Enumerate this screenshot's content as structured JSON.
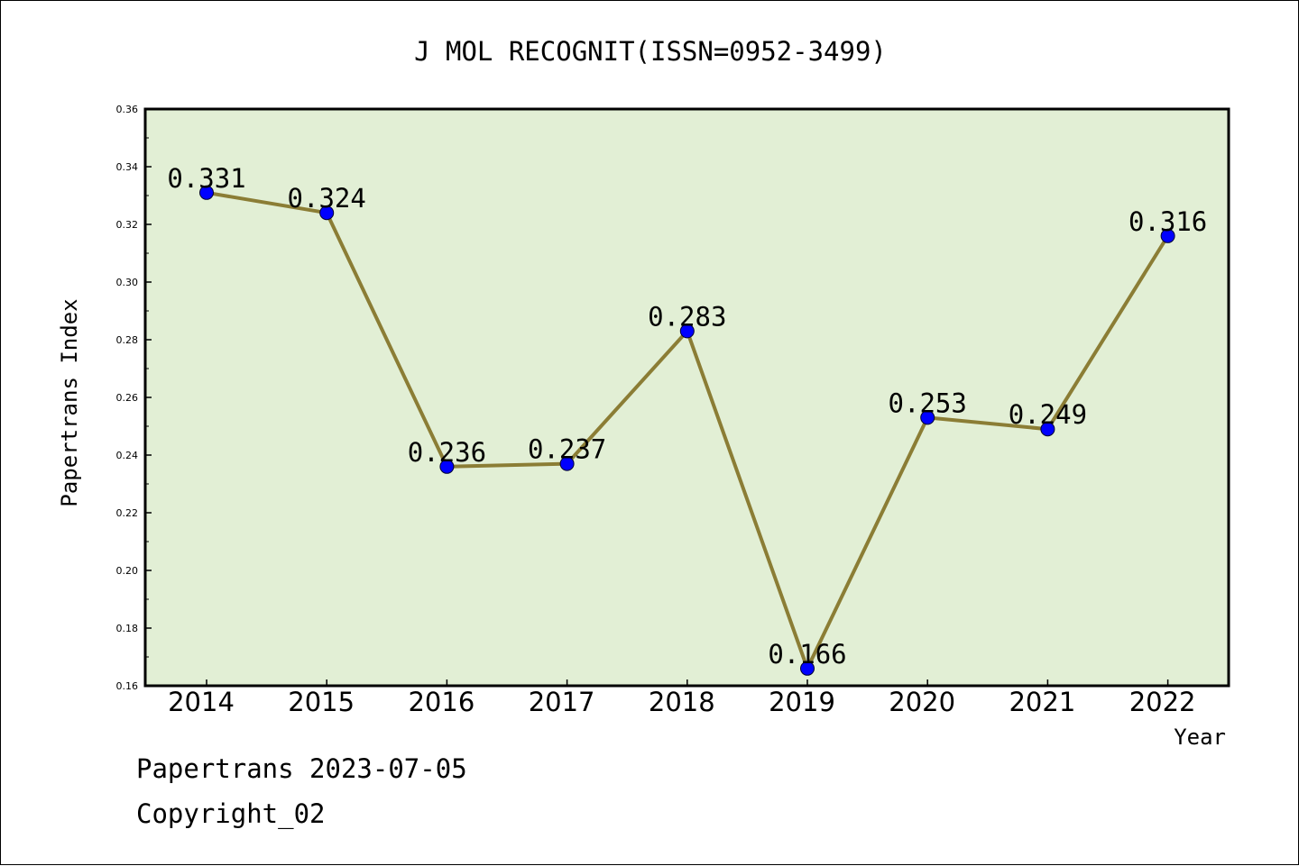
{
  "chart_data": {
    "type": "line",
    "title": "J MOL RECOGNIT(ISSN=0952-3499)",
    "xlabel": "Year",
    "ylabel": "Papertrans Index",
    "categories": [
      "2014",
      "2015",
      "2016",
      "2017",
      "2018",
      "2019",
      "2020",
      "2021",
      "2022"
    ],
    "values": [
      0.331,
      0.324,
      0.236,
      0.237,
      0.283,
      0.166,
      0.253,
      0.249,
      0.316
    ],
    "data_labels": [
      "0.331",
      "0.324",
      "0.236",
      "0.237",
      "0.283",
      "0.166",
      "0.253",
      "0.249",
      "0.316"
    ],
    "ylim": [
      0.16,
      0.36
    ],
    "y_ticks": [
      "0.16",
      "0.18",
      "0.20",
      "0.22",
      "0.24",
      "0.26",
      "0.28",
      "0.30",
      "0.32",
      "0.34",
      "0.36"
    ],
    "grid": false,
    "legend": "none",
    "colors": {
      "plot_background": "#e2efd5",
      "line": "#8b7d35",
      "marker": "#0000ff"
    }
  },
  "footer": {
    "line1": "Papertrans 2023-07-05",
    "line2": "Copyright_02"
  }
}
